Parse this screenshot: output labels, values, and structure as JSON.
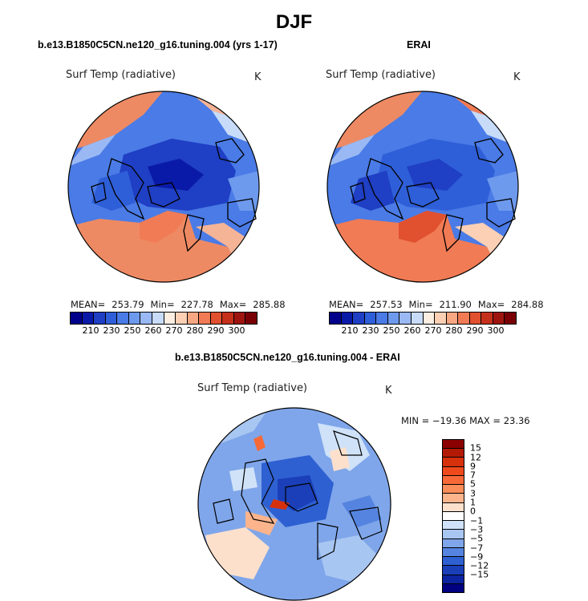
{
  "figure": {
    "title": "DJF",
    "model_title": "b.e13.B1850C5CN.ne120_g16.tuning.004 (yrs 1-17)",
    "obs_title": "ERAI",
    "diff_title": "b.e13.B1850C5CN.ne120_g16.tuning.004 - ERAI"
  },
  "panels": {
    "model": {
      "variable": "Surf Temp (radiative)",
      "units": "K",
      "mean_label": "MEAN=",
      "mean": "253.79",
      "min_label": "Min=",
      "min": "227.78",
      "max_label": "Max=",
      "max": "285.88"
    },
    "obs": {
      "variable": "Surf Temp (radiative)",
      "units": "K",
      "mean_label": "MEAN=",
      "mean": "257.53",
      "min_label": "Min=",
      "min": "211.90",
      "max_label": "Max=",
      "max": "284.88"
    },
    "diff": {
      "variable": "Surf Temp (radiative)",
      "units": "K",
      "minmax_text": "MIN = −19.36 MAX =  23.36"
    }
  },
  "abs_colorbar": {
    "tick_labels": [
      "210",
      "230",
      "250",
      "260",
      "270",
      "280",
      "290",
      "300"
    ],
    "colors": [
      "#00008b",
      "#0a1aa8",
      "#1f3fc4",
      "#2f5fd8",
      "#4a7be6",
      "#6e9aee",
      "#9ab9f4",
      "#c8dcfa",
      "#fdeee2",
      "#fbd0b4",
      "#f7a782",
      "#f07b55",
      "#e1502f",
      "#c5301b",
      "#9e1510",
      "#780005"
    ]
  },
  "diff_colorbar": {
    "tick_labels": [
      "15",
      "12",
      "9",
      "7",
      "5",
      "3",
      "1",
      "0",
      "−1",
      "−3",
      "−5",
      "−7",
      "−9",
      "−12",
      "−15"
    ],
    "colors": [
      "#8b0000",
      "#b31a05",
      "#d6300c",
      "#ef4a1c",
      "#f76a38",
      "#fa8d5a",
      "#fcb48c",
      "#fde0cc",
      "#ffffff",
      "#cfe2f8",
      "#a8c6f2",
      "#7fa6ea",
      "#5584e0",
      "#2e60d2",
      "#1a3fb8",
      "#0c24a0",
      "#000080"
    ]
  },
  "colors": {
    "ocean_warm": "#ee8a63",
    "ocean_mild": "#f6b497",
    "ice_cold": "#2f5fd8",
    "ice_colder": "#1f3fc4",
    "land_mid": "#4a7be6",
    "coast": "#000000",
    "diff_bg": "#4a7be6"
  }
}
